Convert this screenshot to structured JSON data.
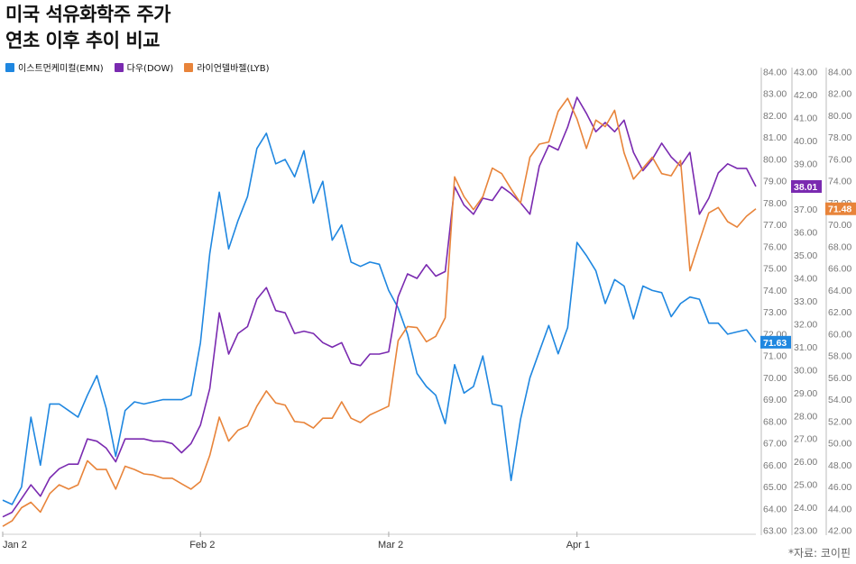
{
  "title_lines": [
    "미국 석유화학주 주가",
    "연초 이후 추이 비교"
  ],
  "source": "*자료: 코이핀",
  "colors": {
    "emn": "#1f87e0",
    "dow": "#7a2ab0",
    "lyb": "#e8843a",
    "axis": "#999999",
    "grid": "#dddddd"
  },
  "chart_data": {
    "type": "line",
    "title": "미국 석유화학주 주가 연초 이후 추이 비교",
    "x_ticks": [
      "Jan 2",
      "Feb 2",
      "Mar 2",
      "Apr 1"
    ],
    "x_tick_index": [
      0,
      21,
      41,
      61
    ],
    "axes": [
      {
        "id": "lyb",
        "range": [
          42,
          84
        ],
        "ticks": [
          "84.00",
          "82.00",
          "80.00",
          "78.00",
          "76.00",
          "74.00",
          "72.00",
          "70.00",
          "68.00",
          "66.00",
          "64.00",
          "62.00",
          "60.00",
          "58.00",
          "56.00",
          "54.00",
          "52.00",
          "50.00",
          "48.00",
          "46.00",
          "44.00",
          "42.00"
        ]
      },
      {
        "id": "dow",
        "range": [
          23,
          43
        ],
        "ticks": [
          "43.00",
          "42.00",
          "41.00",
          "40.00",
          "39.00",
          "38.00",
          "37.00",
          "36.00",
          "35.00",
          "34.00",
          "33.00",
          "32.00",
          "31.00",
          "30.00",
          "29.00",
          "28.00",
          "27.00",
          "26.00",
          "25.00",
          "24.00",
          "23.00"
        ]
      },
      {
        "id": "emn",
        "range": [
          63,
          84
        ],
        "ticks": [
          "84.00",
          "83.00",
          "82.00",
          "81.00",
          "80.00",
          "79.00",
          "78.00",
          "77.00",
          "76.00",
          "75.00",
          "74.00",
          "73.00",
          "72.00",
          "71.00",
          "70.00",
          "69.00",
          "68.00",
          "67.00",
          "66.00",
          "65.00",
          "64.00",
          "63.00"
        ]
      }
    ],
    "series": [
      {
        "name": "이스트먼케미컬(EMN)",
        "key": "emn",
        "axis": "emn",
        "last_label": "71.63",
        "values": [
          64.4,
          64.2,
          65.0,
          68.2,
          66.0,
          68.8,
          68.8,
          68.5,
          68.2,
          69.2,
          70.1,
          68.6,
          66.4,
          68.5,
          68.9,
          68.8,
          68.9,
          69.0,
          69.0,
          69.0,
          69.2,
          71.6,
          75.7,
          78.5,
          75.9,
          77.2,
          78.3,
          80.5,
          81.2,
          79.8,
          80.0,
          79.2,
          80.4,
          78.0,
          79.0,
          76.3,
          77.0,
          75.3,
          75.1,
          75.3,
          75.2,
          74.0,
          73.2,
          72.0,
          70.2,
          69.6,
          69.2,
          67.9,
          70.6,
          69.3,
          69.6,
          71.0,
          68.8,
          68.7,
          65.3,
          68.1,
          70.0,
          71.2,
          72.4,
          71.1,
          72.3,
          76.2,
          75.6,
          74.9,
          73.4,
          74.5,
          74.2,
          72.7,
          74.2,
          74.0,
          73.9,
          72.8,
          73.4,
          73.7,
          73.6,
          72.5,
          72.5,
          72.0,
          72.1,
          72.2,
          71.63
        ]
      },
      {
        "name": "다우(DOW)",
        "key": "dow",
        "axis": "dow",
        "last_label": "38.01",
        "values": [
          23.6,
          23.8,
          24.4,
          25.0,
          24.5,
          25.3,
          25.7,
          25.9,
          25.9,
          27.0,
          26.9,
          26.6,
          26.0,
          27.0,
          27.0,
          27.0,
          26.9,
          26.9,
          26.8,
          26.4,
          26.8,
          27.6,
          29.2,
          32.5,
          30.7,
          31.6,
          31.9,
          33.1,
          33.6,
          32.6,
          32.5,
          31.6,
          31.7,
          31.6,
          31.2,
          31.0,
          31.2,
          30.3,
          30.2,
          30.7,
          30.7,
          30.8,
          33.2,
          34.2,
          34.0,
          34.6,
          34.1,
          34.3,
          38.0,
          37.2,
          36.8,
          37.5,
          37.4,
          38.0,
          37.7,
          37.3,
          36.8,
          38.9,
          39.8,
          39.6,
          40.6,
          41.9,
          41.2,
          40.4,
          40.8,
          40.4,
          40.9,
          39.5,
          38.7,
          39.2,
          39.9,
          39.3,
          38.9,
          39.5,
          36.8,
          37.5,
          38.6,
          39.0,
          38.8,
          38.8,
          38.01
        ]
      },
      {
        "name": "라이언델바젤(LYB)",
        "key": "lyb",
        "axis": "lyb",
        "last_label": "71.48",
        "values": [
          42.4,
          42.9,
          44.1,
          44.6,
          43.7,
          45.4,
          46.2,
          45.8,
          46.2,
          48.4,
          47.6,
          47.6,
          45.8,
          47.9,
          47.6,
          47.2,
          47.1,
          46.8,
          46.8,
          46.3,
          45.8,
          46.5,
          48.9,
          52.4,
          50.2,
          51.2,
          51.6,
          53.4,
          54.8,
          53.7,
          53.5,
          52.0,
          51.9,
          51.4,
          52.3,
          52.3,
          53.8,
          52.3,
          51.9,
          52.6,
          53.0,
          53.4,
          59.4,
          60.7,
          60.6,
          59.3,
          59.8,
          61.5,
          74.4,
          72.6,
          71.4,
          72.6,
          75.2,
          74.7,
          73.3,
          72.0,
          76.2,
          77.4,
          77.6,
          80.4,
          81.6,
          79.7,
          77.0,
          79.6,
          79.0,
          80.5,
          76.6,
          74.2,
          75.2,
          76.2,
          74.7,
          74.5,
          75.9,
          65.8,
          68.5,
          71.1,
          71.6,
          70.3,
          69.8,
          70.8,
          71.48
        ]
      }
    ]
  }
}
